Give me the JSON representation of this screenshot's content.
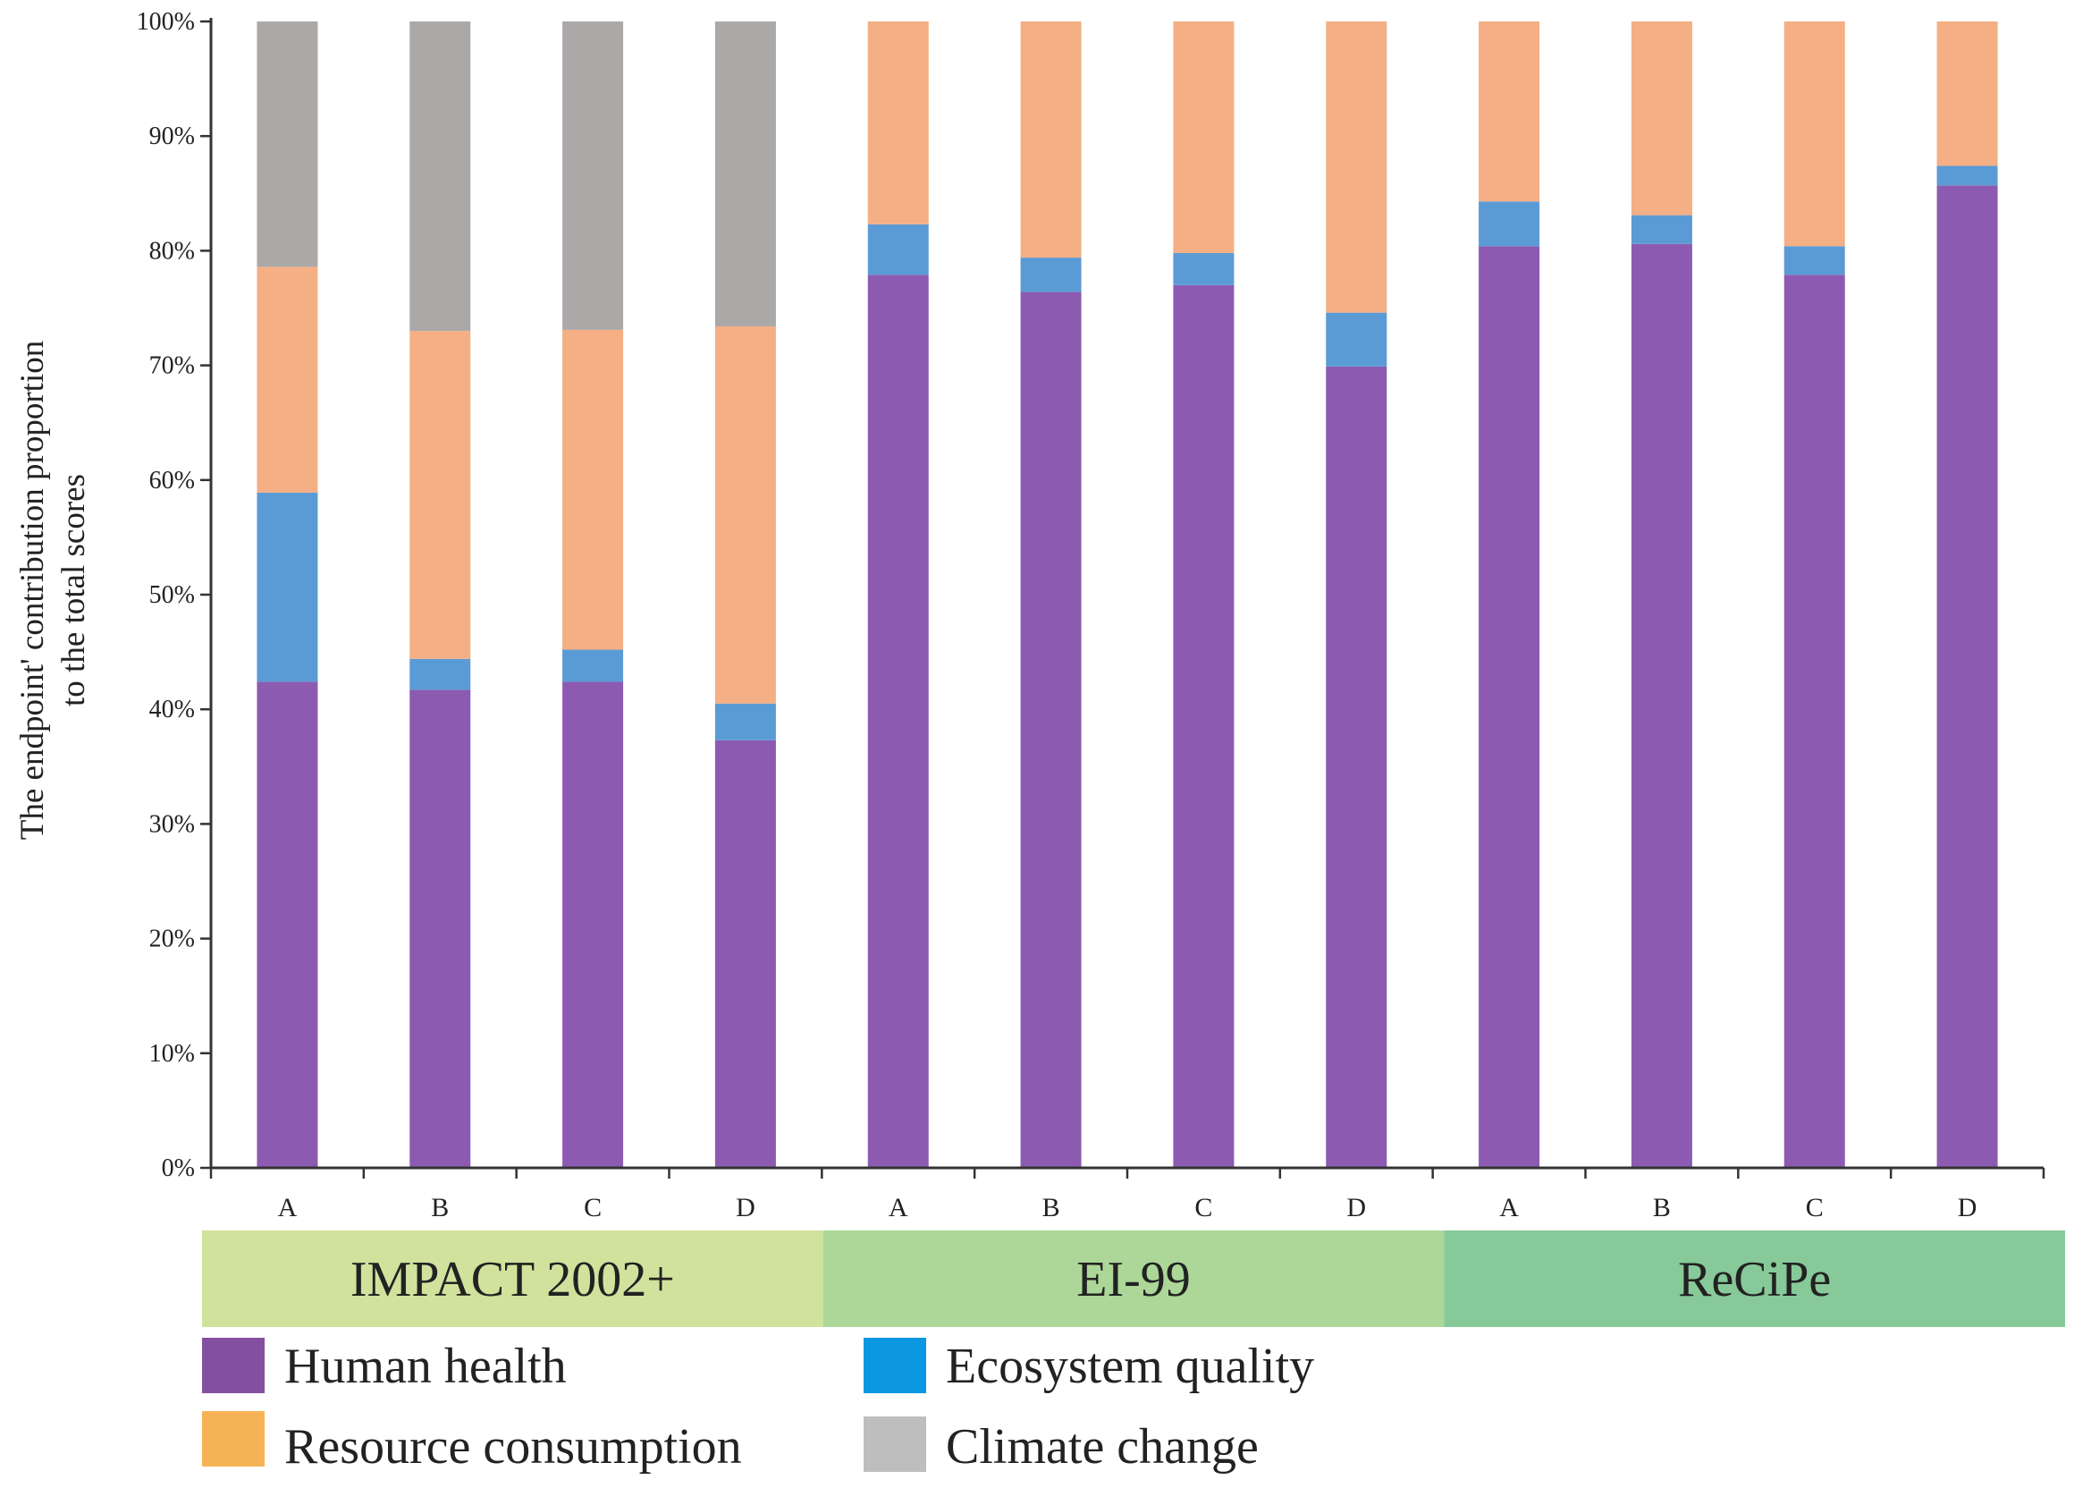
{
  "chart_data": {
    "type": "bar",
    "stacked": true,
    "normalized": true,
    "ylabel_lines": [
      "The endpoint' contribution proportion",
      "to the total scores"
    ],
    "ylim": [
      0,
      100
    ],
    "yticks": [
      "0%",
      "10%",
      "20%",
      "30%",
      "40%",
      "50%",
      "60%",
      "70%",
      "80%",
      "90%",
      "100%"
    ],
    "categories": [
      "A",
      "B",
      "C",
      "D",
      "A",
      "B",
      "C",
      "D",
      "A",
      "B",
      "C",
      "D"
    ],
    "groups": [
      {
        "name": "IMPACT 2002+",
        "count": 4,
        "color": "#d1e29d"
      },
      {
        "name": "EI-99",
        "count": 4,
        "color": "#acd798"
      },
      {
        "name": "ReCiPe",
        "count": 4,
        "color": "#87c999"
      }
    ],
    "series": [
      {
        "name": "Human health",
        "color": "#8c5bb1",
        "legend_color": "#8350a0",
        "values": [
          42.4,
          41.7,
          42.4,
          37.3,
          77.9,
          76.4,
          77.0,
          69.9,
          80.4,
          80.6,
          77.9,
          85.7
        ]
      },
      {
        "name": "Ecosystem quality",
        "color": "#5b9bd5",
        "legend_color": "#0b98e0",
        "values": [
          16.5,
          2.7,
          2.8,
          3.2,
          4.4,
          3.0,
          2.8,
          4.7,
          3.9,
          2.5,
          2.5,
          1.7
        ]
      },
      {
        "name": "Resource consumption",
        "color": "#f4af84",
        "legend_color": "#f6b356",
        "values": [
          19.7,
          28.6,
          27.9,
          32.9,
          17.7,
          20.6,
          20.2,
          25.4,
          15.7,
          16.9,
          19.6,
          12.6
        ]
      },
      {
        "name": "Climate change",
        "color": "#aba8a8",
        "legend_color": "#bebebe",
        "values": [
          21.4,
          27.0,
          26.9,
          26.6,
          0,
          0,
          0,
          0,
          0,
          0,
          0,
          0
        ]
      }
    ],
    "legend_order": [
      "Human health",
      "Ecosystem quality",
      "Resource consumption",
      "Climate change"
    ],
    "legend_position": "bottom",
    "grid": false
  }
}
